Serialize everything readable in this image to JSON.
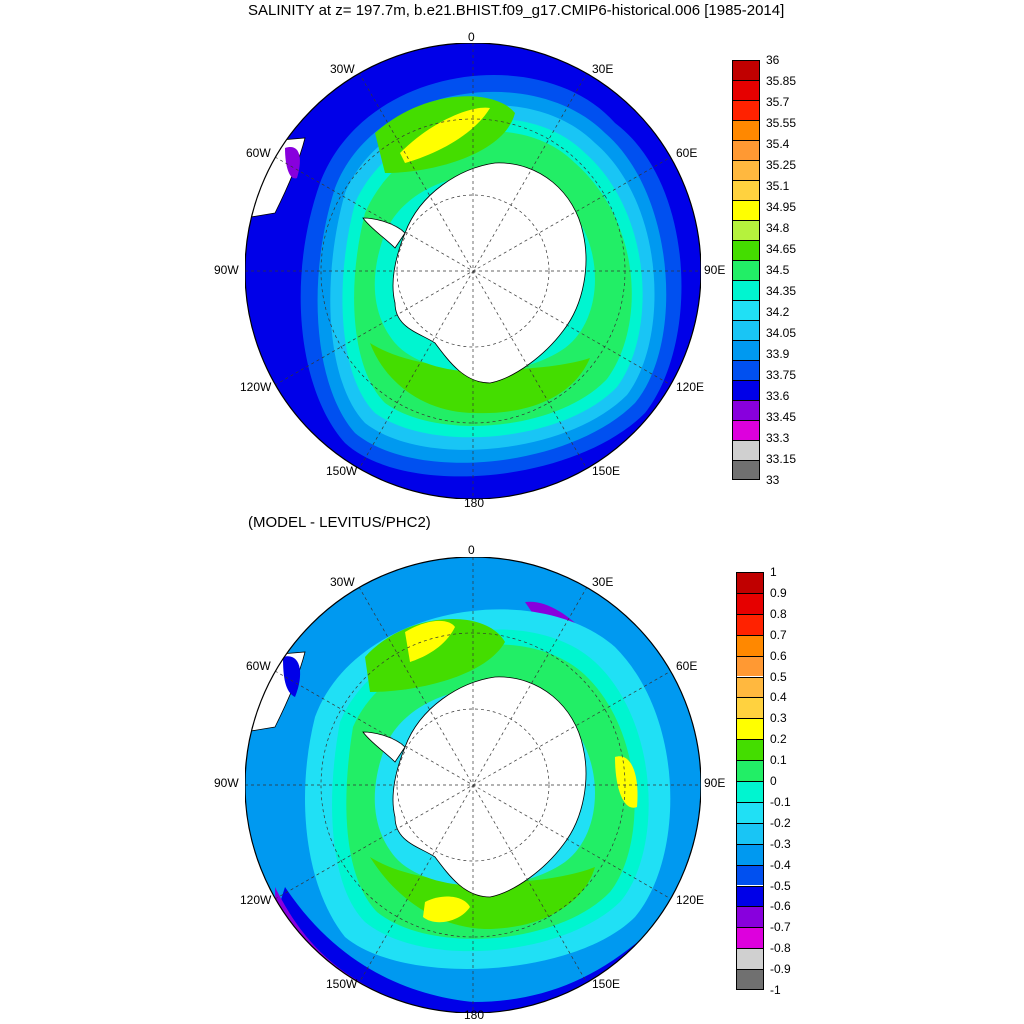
{
  "top": {
    "title": "SALINITY at z= 197.7m, b.e21.BHIST.f09_g17.CMIP6-historical.006 [1985-2014]",
    "colorbar": {
      "labels": [
        "36",
        "35.85",
        "35.7",
        "35.55",
        "35.4",
        "35.25",
        "35.1",
        "34.95",
        "34.8",
        "34.65",
        "34.5",
        "34.35",
        "34.2",
        "34.05",
        "33.9",
        "33.75",
        "33.6",
        "33.45",
        "33.3",
        "33.15",
        "33"
      ],
      "colors": [
        "#c00000",
        "#e60000",
        "#ff2200",
        "#ff8800",
        "#ff9933",
        "#ffb83f",
        "#ffd23f",
        "#ffff00",
        "#b5f23d",
        "#44dd00",
        "#22ee66",
        "#00f5d0",
        "#20e0f5",
        "#19c5f5",
        "#0099f0",
        "#0050f0",
        "#0000e8",
        "#8800dd",
        "#dd00dd",
        "#d0d0d0",
        "#707070"
      ]
    },
    "lon_labels": {
      "n0": "0",
      "n30e": "30E",
      "n60e": "60E",
      "n90e": "90E",
      "n120e": "120E",
      "n150e": "150E",
      "n180": "180",
      "n150w": "150W",
      "n120w": "120W",
      "n90w": "90W",
      "n60w": "60W",
      "n30w": "30W"
    }
  },
  "bottom": {
    "title": "(MODEL - LEVITUS/PHC2)",
    "colorbar": {
      "labels": [
        "1",
        "0.9",
        "0.8",
        "0.7",
        "0.6",
        "0.5",
        "0.4",
        "0.3",
        "0.2",
        "0.1",
        "0",
        "-0.1",
        "-0.2",
        "-0.3",
        "-0.4",
        "-0.5",
        "-0.6",
        "-0.7",
        "-0.8",
        "-0.9",
        "-1"
      ],
      "colors": [
        "#c00000",
        "#e60000",
        "#ff2200",
        "#ff8800",
        "#ff9933",
        "#ffb83f",
        "#ffd23f",
        "#ffff00",
        "#44dd00",
        "#22ee66",
        "#00f5d0",
        "#20e0f5",
        "#19c5f5",
        "#0099f0",
        "#0050f0",
        "#0000e8",
        "#8800dd",
        "#dd00dd",
        "#d0d0d0",
        "#707070"
      ]
    },
    "lon_labels": {
      "n0": "0",
      "n30e": "30E",
      "n60e": "60E",
      "n90e": "90E",
      "n120e": "120E",
      "n150e": "150E",
      "n180": "180",
      "n150w": "150W",
      "n120w": "120W",
      "n90w": "90W",
      "n60w": "60W",
      "n30w": "30W"
    }
  }
}
